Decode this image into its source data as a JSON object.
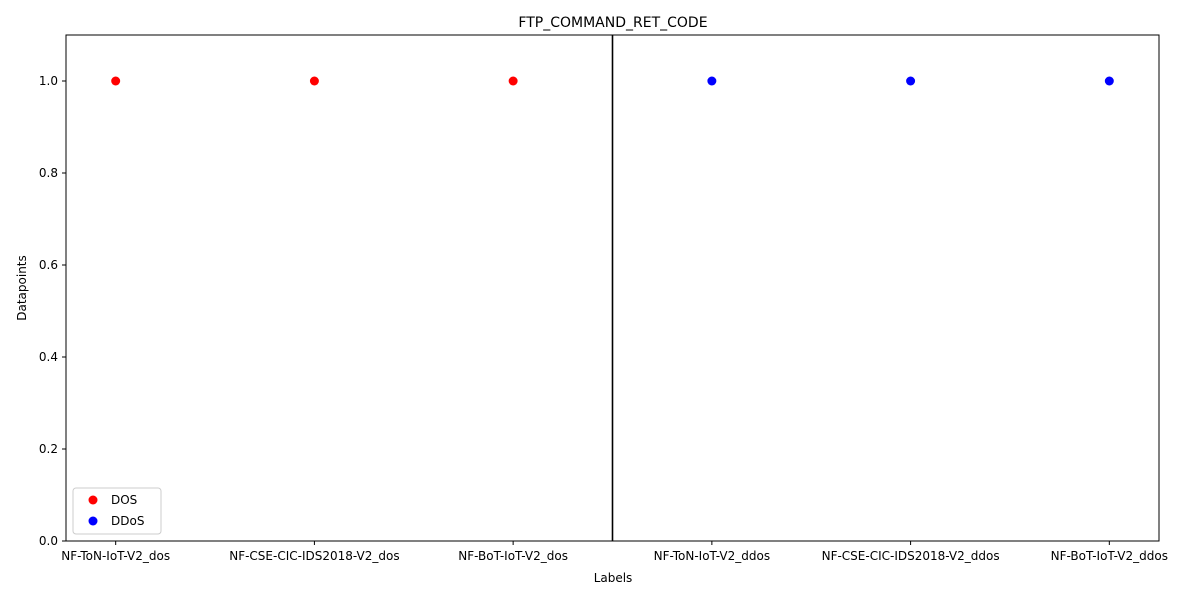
{
  "chart_data": {
    "type": "scatter",
    "title": "FTP_COMMAND_RET_CODE",
    "xlabel": "Labels",
    "ylabel": "Datapoints",
    "categories": [
      "NF-ToN-IoT-V2_dos",
      "NF-CSE-CIC-IDS2018-V2_dos",
      "NF-BoT-IoT-V2_dos",
      "NF-ToN-IoT-V2_ddos",
      "NF-CSE-CIC-IDS2018-V2_ddos",
      "NF-BoT-IoT-V2_ddos"
    ],
    "series": [
      {
        "name": "DOS",
        "color": "#ff0000",
        "points": [
          {
            "x": "NF-ToN-IoT-V2_dos",
            "y": 1.0
          },
          {
            "x": "NF-CSE-CIC-IDS2018-V2_dos",
            "y": 1.0
          },
          {
            "x": "NF-BoT-IoT-V2_dos",
            "y": 1.0
          }
        ]
      },
      {
        "name": "DDoS",
        "color": "#0000ff",
        "points": [
          {
            "x": "NF-ToN-IoT-V2_ddos",
            "y": 1.0
          },
          {
            "x": "NF-CSE-CIC-IDS2018-V2_ddos",
            "y": 1.0
          },
          {
            "x": "NF-BoT-IoT-V2_ddos",
            "y": 1.0
          }
        ]
      }
    ],
    "ylim": [
      0,
      1.1
    ],
    "yticks": [
      "0.0",
      "0.2",
      "0.4",
      "0.6",
      "0.8",
      "1.0"
    ],
    "separator_between": [
      "NF-BoT-IoT-V2_dos",
      "NF-ToN-IoT-V2_ddos"
    ],
    "grid": false,
    "legend_position": "lower-left"
  }
}
